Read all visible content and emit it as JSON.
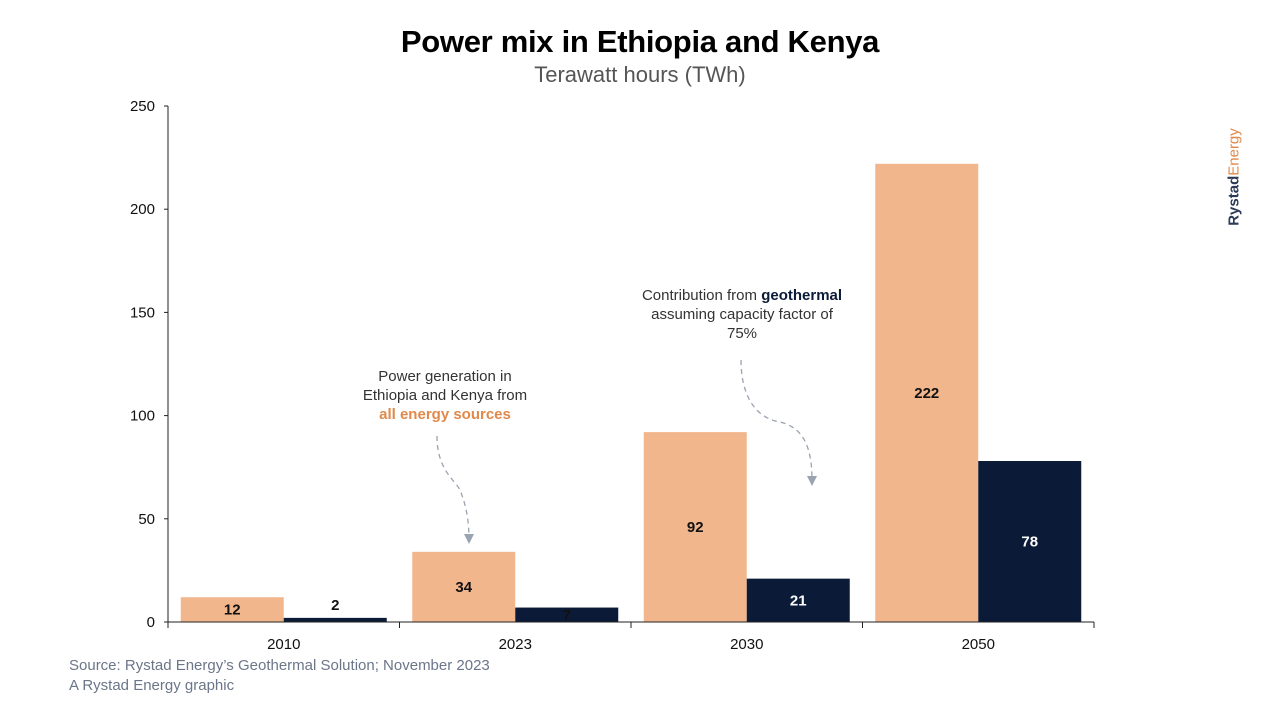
{
  "chart_data": {
    "type": "bar",
    "title": "Power mix in Ethiopia and Kenya",
    "subtitle": "Terawatt hours (TWh)",
    "categories": [
      "2010",
      "2023",
      "2030",
      "2050"
    ],
    "series": [
      {
        "values": [
          12,
          34,
          92,
          222
        ],
        "color": "#f2b68c",
        "label_color": "#111111"
      },
      {
        "values": [
          2,
          7,
          21,
          78
        ],
        "color": "#0b1a36",
        "label_color_inside": "#ffffff",
        "label_color_outside": "#111111"
      }
    ],
    "ylim": [
      0,
      250
    ],
    "yticks": [
      "0",
      "50",
      "100",
      "150",
      "200",
      "250"
    ],
    "grid": false,
    "legend": "none"
  },
  "annotations": {
    "all_sources": {
      "line1": "Power generation in",
      "line2": "Ethiopia and Kenya from",
      "highlight": "all energy sources"
    },
    "geothermal": {
      "prefix": "Contribution from",
      "highlight": "geothermal",
      "line2": "assuming capacity factor of",
      "line3": "75%"
    }
  },
  "brand": {
    "part1": "Rystad",
    "part2": "Energy"
  },
  "footer": {
    "source": "Source: Rystad Energy’s Geothermal Solution; November 2023",
    "credit": "A Rystad Energy graphic"
  }
}
